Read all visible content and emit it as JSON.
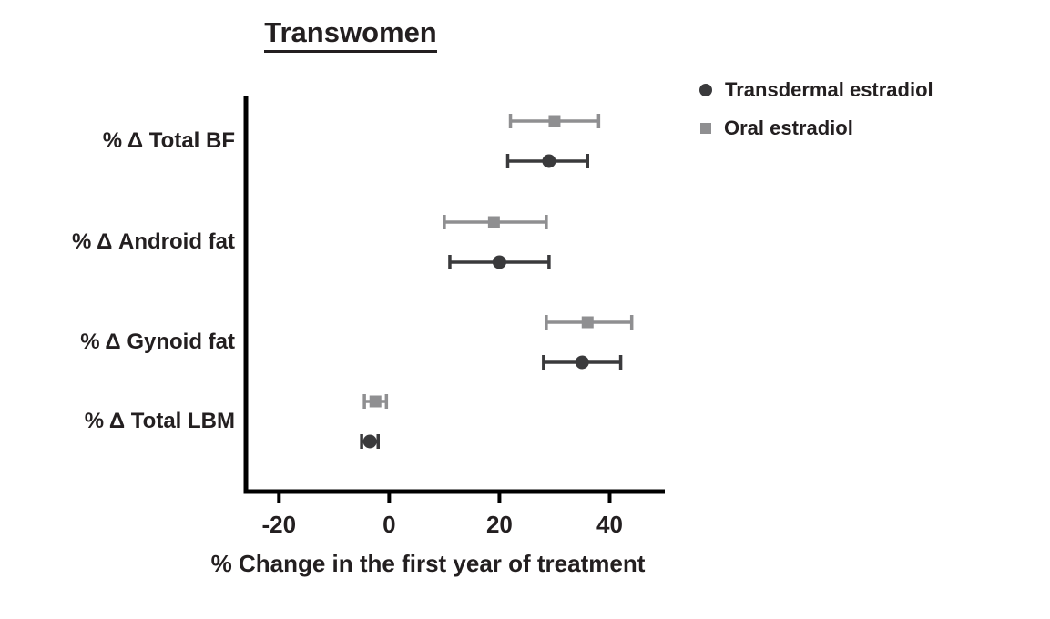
{
  "colors": {
    "text": "#231f20",
    "axis": "#000000",
    "transdermal": "#3a3a3c",
    "oral": "#8f8f91"
  },
  "chart_data": {
    "type": "scatter",
    "variant": "horizontal point estimates with error bars (forest-style plot)",
    "title": "Transwomen",
    "xlabel": "% Change in the first year of treatment",
    "categories": [
      "% Δ Total BF",
      "% Δ Android fat",
      "% Δ Gynoid fat",
      "% Δ Total LBM"
    ],
    "xlim": [
      -26,
      50
    ],
    "xticks": [
      -20,
      0,
      20,
      40
    ],
    "grid": false,
    "legend_position": "top-right",
    "series": [
      {
        "name": "Transdermal estradiol",
        "marker": "circle",
        "color": "#3a3a3c",
        "values": [
          29,
          20,
          35,
          -3.5
        ],
        "ci_low": [
          21.5,
          11,
          28,
          -5
        ],
        "ci_high": [
          36,
          29,
          42,
          -2
        ]
      },
      {
        "name": "Oral estradiol",
        "marker": "square",
        "color": "#8f8f91",
        "values": [
          30,
          19,
          36,
          -2.5
        ],
        "ci_low": [
          22,
          10,
          28.5,
          -4.5
        ],
        "ci_high": [
          38,
          28.5,
          44,
          -0.5
        ]
      }
    ]
  }
}
